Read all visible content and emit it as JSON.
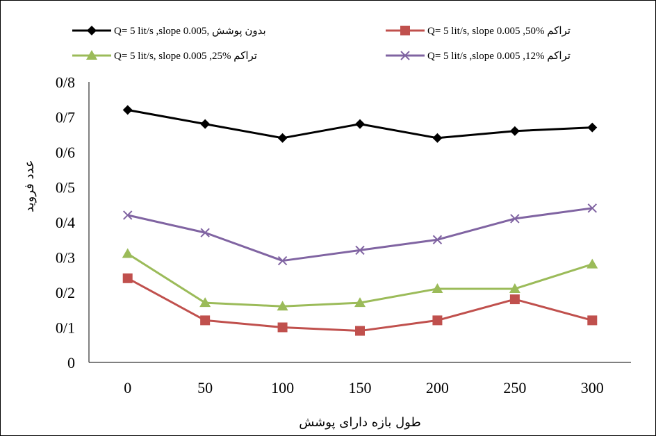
{
  "chart_data": {
    "type": "line",
    "title": "",
    "xlabel": "طول بازه دارای پوشش",
    "ylabel": "عدد فرويد",
    "x": [
      0,
      50,
      100,
      150,
      200,
      250,
      300
    ],
    "y_tick_labels": [
      "0",
      "0/1",
      "0/2",
      "0/3",
      "0/4",
      "0/5",
      "0/6",
      "0/7",
      "0/8"
    ],
    "ylim": [
      0,
      0.8
    ],
    "grid": false,
    "legend_position": "top",
    "series": [
      {
        "name": "Q= 5 lit/s ,slope 0.005, بدون پوشش",
        "color": "#000000",
        "marker": "diamond",
        "values": [
          0.72,
          0.68,
          0.64,
          0.68,
          0.64,
          0.66,
          0.67
        ]
      },
      {
        "name": "Q= 5 lit/s,  slope 0.005 ,50% تراکم",
        "color": "#c0504d",
        "marker": "square",
        "values": [
          0.24,
          0.12,
          0.1,
          0.09,
          0.12,
          0.18,
          0.12
        ]
      },
      {
        "name": "Q= 5 lit/s, slope 0.005 ,25% تراکم",
        "color": "#9bbb59",
        "marker": "triangle",
        "values": [
          0.31,
          0.17,
          0.16,
          0.17,
          0.21,
          0.21,
          0.28
        ]
      },
      {
        "name": "Q= 5 lit/s ,slope 0.005 ,12% تراکم",
        "color": "#8064a2",
        "marker": "x",
        "values": [
          0.42,
          0.37,
          0.29,
          0.32,
          0.35,
          0.41,
          0.44
        ]
      }
    ]
  }
}
